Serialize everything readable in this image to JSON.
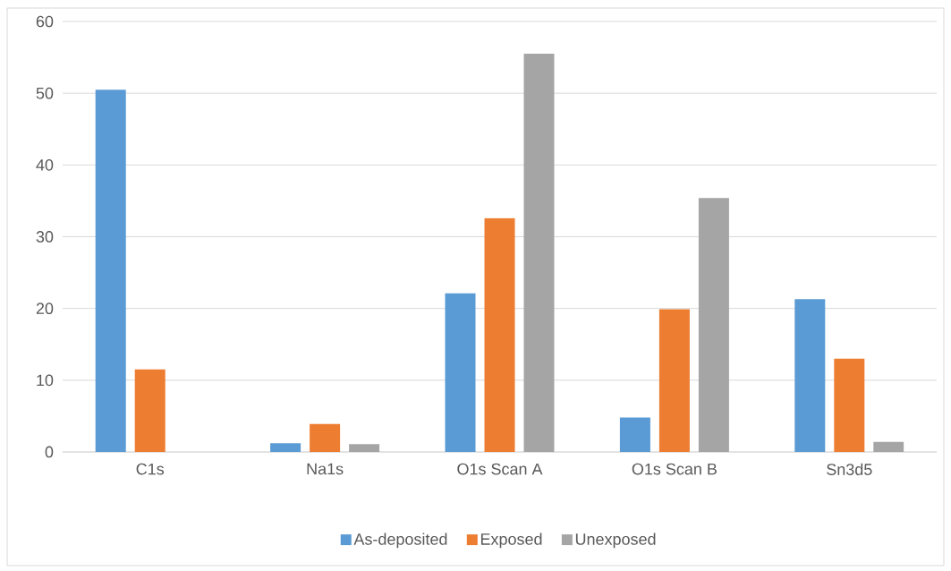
{
  "chart_data": {
    "type": "bar",
    "categories": [
      "C1s",
      "Na1s",
      "O1s Scan A",
      "O1s Scan B",
      "Sn3d5"
    ],
    "series": [
      {
        "name": "As-deposited",
        "color": "#5b9bd5",
        "values": [
          50.5,
          1.2,
          22.1,
          4.8,
          21.3
        ]
      },
      {
        "name": "Exposed",
        "color": "#ed7d31",
        "values": [
          11.5,
          3.9,
          32.6,
          19.9,
          13.0
        ]
      },
      {
        "name": "Unexposed",
        "color": "#a5a5a5",
        "values": [
          null,
          1.1,
          55.5,
          35.4,
          1.4
        ]
      }
    ],
    "ylim": [
      0,
      60
    ],
    "yticks": [
      0,
      10,
      20,
      30,
      40,
      50,
      60
    ],
    "grid": "y",
    "legend": "bottom"
  }
}
